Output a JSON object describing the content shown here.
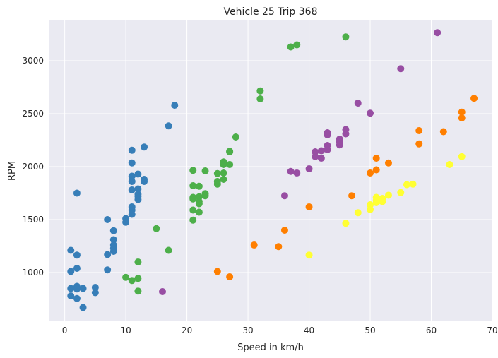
{
  "chart_data": {
    "type": "scatter",
    "title": "Vehicle 25 Trip 368",
    "xlabel": "Speed in km/h",
    "ylabel": "RPM",
    "xlim": [
      -2.5,
      70
    ],
    "ylim": [
      540,
      3380
    ],
    "xticks": [
      0,
      10,
      20,
      30,
      40,
      50,
      60,
      70
    ],
    "yticks": [
      1000,
      1500,
      2000,
      2500,
      3000
    ],
    "grid": true,
    "background": "#eaeaf2",
    "series": [
      {
        "color": "#377eb8",
        "points": [
          [
            1,
            1210
          ],
          [
            1,
            1010
          ],
          [
            1,
            850
          ],
          [
            1,
            780
          ],
          [
            2,
            1750
          ],
          [
            2,
            1165
          ],
          [
            2,
            1040
          ],
          [
            2,
            870
          ],
          [
            2,
            845
          ],
          [
            2,
            755
          ],
          [
            3,
            850
          ],
          [
            3,
            670
          ],
          [
            5,
            860
          ],
          [
            5,
            810
          ],
          [
            7,
            1500
          ],
          [
            7,
            1170
          ],
          [
            7,
            1025
          ],
          [
            8,
            1395
          ],
          [
            8,
            1310
          ],
          [
            8,
            1260
          ],
          [
            8,
            1230
          ],
          [
            8,
            1200
          ],
          [
            10,
            1510
          ],
          [
            10,
            1475
          ],
          [
            11,
            2155
          ],
          [
            11,
            2035
          ],
          [
            11,
            1910
          ],
          [
            11,
            1860
          ],
          [
            11,
            1780
          ],
          [
            11,
            1620
          ],
          [
            11,
            1590
          ],
          [
            11,
            1550
          ],
          [
            12,
            1930
          ],
          [
            12,
            1790
          ],
          [
            12,
            1740
          ],
          [
            12,
            1720
          ],
          [
            12,
            1690
          ],
          [
            13,
            2185
          ],
          [
            13,
            1880
          ],
          [
            13,
            1860
          ],
          [
            17,
            2385
          ],
          [
            18,
            2580
          ]
        ]
      },
      {
        "color": "#4daf4a",
        "points": [
          [
            10,
            955
          ],
          [
            11,
            925
          ],
          [
            12,
            1100
          ],
          [
            12,
            945
          ],
          [
            12,
            825
          ],
          [
            15,
            1415
          ],
          [
            17,
            1210
          ],
          [
            21,
            1965
          ],
          [
            21,
            1820
          ],
          [
            21,
            1710
          ],
          [
            21,
            1695
          ],
          [
            21,
            1590
          ],
          [
            21,
            1495
          ],
          [
            22,
            1815
          ],
          [
            22,
            1715
          ],
          [
            22,
            1670
          ],
          [
            22,
            1650
          ],
          [
            22,
            1570
          ],
          [
            23,
            1960
          ],
          [
            23,
            1745
          ],
          [
            23,
            1725
          ],
          [
            25,
            1935
          ],
          [
            25,
            1860
          ],
          [
            25,
            1835
          ],
          [
            26,
            2045
          ],
          [
            26,
            2020
          ],
          [
            26,
            1940
          ],
          [
            26,
            1880
          ],
          [
            27,
            2145
          ],
          [
            27,
            2140
          ],
          [
            27,
            2020
          ],
          [
            28,
            2280
          ],
          [
            32,
            2715
          ],
          [
            32,
            2640
          ],
          [
            37,
            3130
          ],
          [
            38,
            3150
          ],
          [
            46,
            3225
          ]
        ]
      },
      {
        "color": "#984ea3",
        "points": [
          [
            16,
            820
          ],
          [
            36,
            1725
          ],
          [
            37,
            1955
          ],
          [
            38,
            1940
          ],
          [
            40,
            1980
          ],
          [
            41,
            2140
          ],
          [
            41,
            2095
          ],
          [
            42,
            2150
          ],
          [
            42,
            2080
          ],
          [
            43,
            2320
          ],
          [
            43,
            2300
          ],
          [
            43,
            2200
          ],
          [
            43,
            2160
          ],
          [
            45,
            2260
          ],
          [
            45,
            2235
          ],
          [
            45,
            2205
          ],
          [
            46,
            2350
          ],
          [
            46,
            2310
          ],
          [
            48,
            2600
          ],
          [
            50,
            2505
          ],
          [
            55,
            2925
          ],
          [
            61,
            3265
          ]
        ]
      },
      {
        "color": "#ff7f00",
        "points": [
          [
            25,
            1010
          ],
          [
            27,
            960
          ],
          [
            31,
            1260
          ],
          [
            35,
            1245
          ],
          [
            36,
            1400
          ],
          [
            40,
            1620
          ],
          [
            47,
            1725
          ],
          [
            50,
            1940
          ],
          [
            51,
            2080
          ],
          [
            51,
            1970
          ],
          [
            53,
            2035
          ],
          [
            58,
            2340
          ],
          [
            58,
            2215
          ],
          [
            62,
            2330
          ],
          [
            65,
            2515
          ],
          [
            65,
            2460
          ],
          [
            67,
            2645
          ]
        ]
      },
      {
        "color": "#ffff33",
        "points": [
          [
            40,
            1165
          ],
          [
            46,
            1465
          ],
          [
            48,
            1565
          ],
          [
            50,
            1640
          ],
          [
            50,
            1595
          ],
          [
            51,
            1710
          ],
          [
            51,
            1680
          ],
          [
            51,
            1660
          ],
          [
            52,
            1700
          ],
          [
            52,
            1670
          ],
          [
            53,
            1730
          ],
          [
            55,
            1755
          ],
          [
            56,
            1830
          ],
          [
            57,
            1835
          ],
          [
            63,
            2020
          ],
          [
            65,
            2095
          ]
        ]
      }
    ]
  }
}
